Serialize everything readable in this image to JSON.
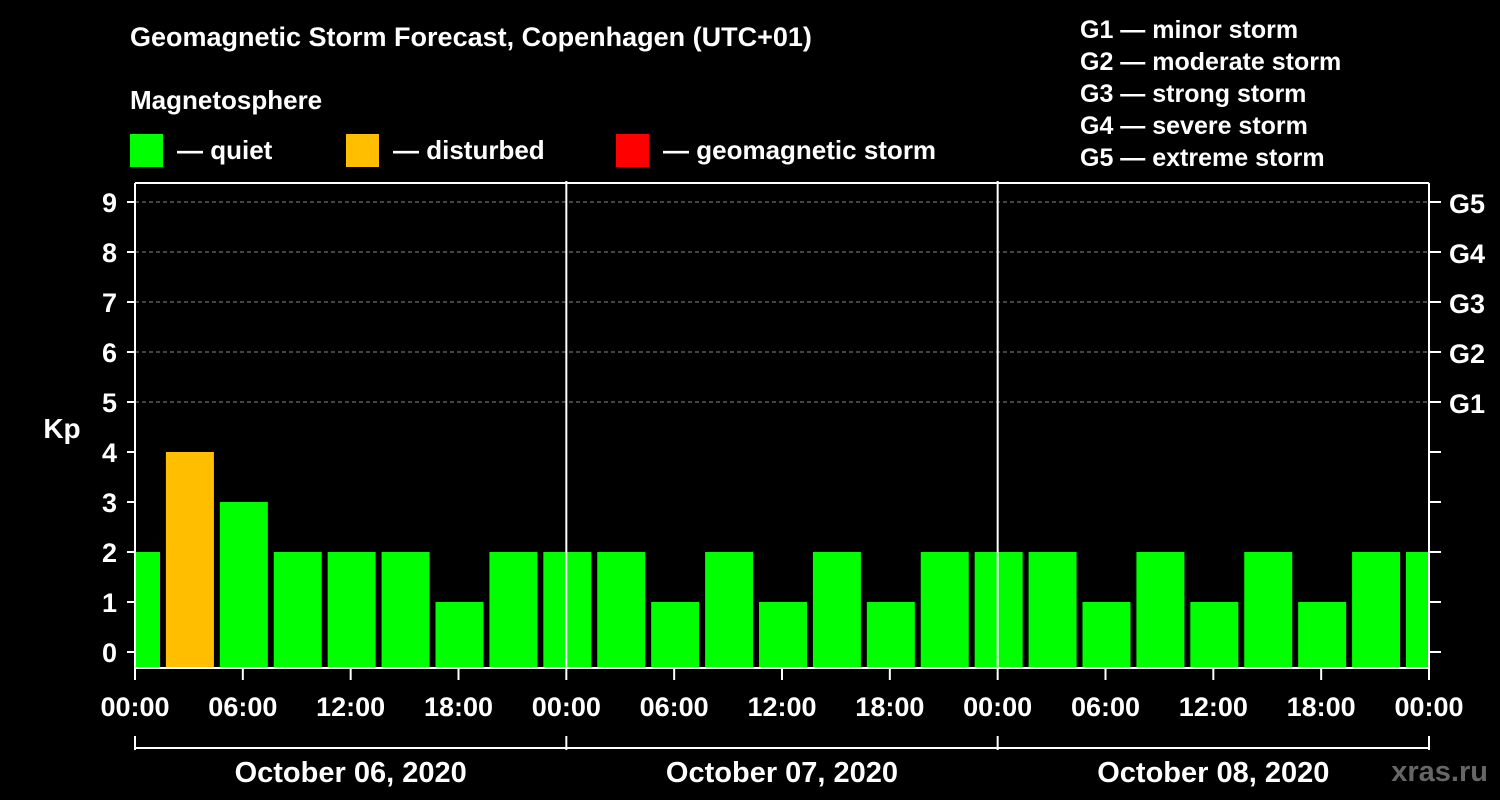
{
  "header": {
    "title": "Geomagnetic Storm Forecast, Copenhagen (UTC+01)",
    "subtitle": "Magnetosphere"
  },
  "legend": [
    {
      "label": "— quiet",
      "color": "#00ff00"
    },
    {
      "label": "— disturbed",
      "color": "#ffbf00"
    },
    {
      "label": "— geomagnetic storm",
      "color": "#ff0000"
    }
  ],
  "storm_scale": [
    "G1 — minor storm",
    "G2 — moderate storm",
    "G3 — strong storm",
    "G4 — severe storm",
    "G5 — extreme storm"
  ],
  "watermark": "xras.ru",
  "chart_data": {
    "type": "bar",
    "ylabel": "Kp",
    "ylim": [
      0,
      9
    ],
    "yticks": [
      "0",
      "1",
      "2",
      "3",
      "4",
      "5",
      "6",
      "7",
      "8",
      "9"
    ],
    "right_ticks": [
      {
        "value": 5,
        "label": "G1"
      },
      {
        "value": 6,
        "label": "G2"
      },
      {
        "value": 7,
        "label": "G3"
      },
      {
        "value": 8,
        "label": "G4"
      },
      {
        "value": 9,
        "label": "G5"
      }
    ],
    "grid": "horizontal dashed at Kp 5-9",
    "xtick_labels": [
      "00:00",
      "06:00",
      "12:00",
      "18:00",
      "00:00",
      "06:00",
      "12:00",
      "18:00",
      "00:00",
      "06:00",
      "12:00",
      "18:00",
      "00:00"
    ],
    "day_labels": [
      "October 06, 2020",
      "October 07, 2020",
      "October 08, 2020"
    ],
    "bar_hours": [
      0,
      3,
      6,
      9,
      12,
      15,
      18,
      21,
      24,
      27,
      30,
      33,
      36,
      39,
      42,
      45,
      48,
      51,
      54,
      57,
      60,
      63,
      66,
      69,
      72
    ],
    "values": [
      2,
      4,
      3,
      2,
      2,
      2,
      1,
      2,
      2,
      2,
      1,
      2,
      1,
      2,
      1,
      2,
      2,
      2,
      1,
      2,
      1,
      2,
      1,
      2,
      2
    ],
    "colors": {
      "quiet": "#00ff00",
      "disturbed": "#ffbf00",
      "storm": "#ff0000"
    }
  }
}
